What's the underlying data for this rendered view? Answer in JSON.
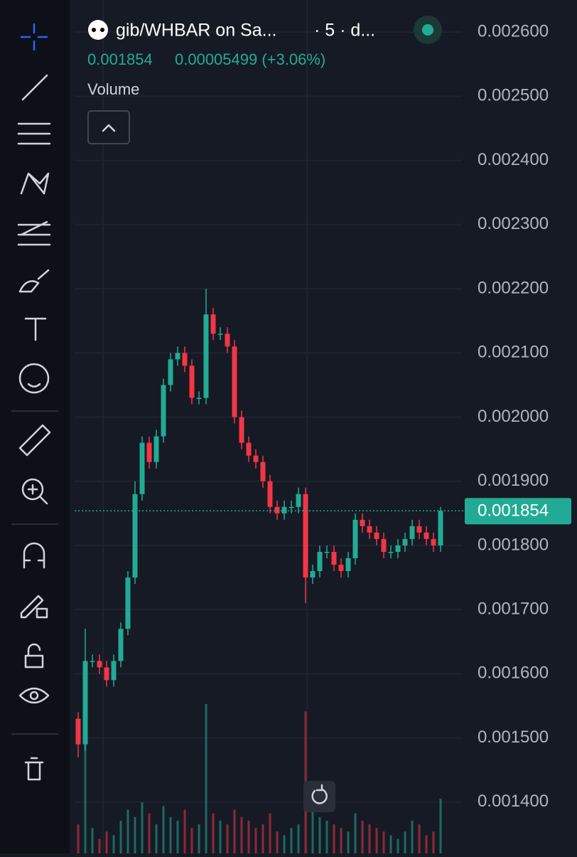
{
  "header": {
    "title": "gib/WHBAR on Sa...",
    "interval": "· 5 · d...",
    "last_price": "0.001854",
    "change": "0.00005499 (+3.06%)",
    "volume_label": "Volume"
  },
  "chart_data": {
    "type": "candlestick",
    "open": [
      0.00153,
      0.00149,
      0.00162,
      0.00162,
      0.00161,
      0.00159,
      0.00162,
      0.00167,
      0.00175,
      0.00188,
      0.00196,
      0.00193,
      0.00197,
      0.00205,
      0.00209,
      0.0021,
      0.00208,
      0.00203,
      0.00203,
      0.00216,
      0.00213,
      0.00213,
      0.00211,
      0.002,
      0.00196,
      0.00194,
      0.00193,
      0.0019,
      0.00186,
      0.00185,
      0.00186,
      0.00186,
      0.00188,
      0.00175,
      0.00176,
      0.00179,
      0.00179,
      0.00177,
      0.00176,
      0.00178,
      0.00184,
      0.00183,
      0.00182,
      0.00181,
      0.00179,
      0.00179,
      0.0018,
      0.00181,
      0.00183,
      0.00182,
      0.00181,
      0.0018
    ],
    "high": [
      0.00154,
      0.00167,
      0.00163,
      0.00163,
      0.00162,
      0.00163,
      0.00168,
      0.00176,
      0.0019,
      0.00197,
      0.00197,
      0.00198,
      0.00206,
      0.0021,
      0.00211,
      0.00211,
      0.00209,
      0.00204,
      0.0022,
      0.00217,
      0.00214,
      0.00214,
      0.00212,
      0.00201,
      0.00197,
      0.00195,
      0.00194,
      0.00191,
      0.00187,
      0.00187,
      0.00187,
      0.00189,
      0.00189,
      0.00177,
      0.0018,
      0.0018,
      0.0018,
      0.00178,
      0.00179,
      0.00185,
      0.00185,
      0.00184,
      0.00183,
      0.00182,
      0.0018,
      0.00181,
      0.00182,
      0.00184,
      0.00184,
      0.00183,
      0.00182,
      0.00186
    ],
    "low": [
      0.00147,
      0.00148,
      0.00161,
      0.0016,
      0.00158,
      0.00158,
      0.00161,
      0.00166,
      0.00174,
      0.00187,
      0.00192,
      0.00192,
      0.00196,
      0.00204,
      0.00208,
      0.00207,
      0.00202,
      0.00202,
      0.00202,
      0.00212,
      0.00212,
      0.0021,
      0.00199,
      0.00195,
      0.00193,
      0.00192,
      0.00189,
      0.00185,
      0.00184,
      0.00184,
      0.00185,
      0.00185,
      0.00171,
      0.00174,
      0.00175,
      0.00178,
      0.00176,
      0.00175,
      0.00175,
      0.00177,
      0.00182,
      0.00181,
      0.0018,
      0.00178,
      0.00178,
      0.00178,
      0.00179,
      0.0018,
      0.00181,
      0.0018,
      0.00179,
      0.00179
    ],
    "close": [
      0.00149,
      0.00162,
      0.00162,
      0.00161,
      0.00159,
      0.00162,
      0.00167,
      0.00175,
      0.00188,
      0.00196,
      0.00193,
      0.00197,
      0.00205,
      0.00209,
      0.0021,
      0.00208,
      0.00203,
      0.00203,
      0.00216,
      0.00213,
      0.00213,
      0.00211,
      0.002,
      0.00196,
      0.00194,
      0.00193,
      0.0019,
      0.00186,
      0.00185,
      0.00186,
      0.00186,
      0.00188,
      0.00175,
      0.00176,
      0.00179,
      0.00179,
      0.00177,
      0.00176,
      0.00178,
      0.00184,
      0.00183,
      0.00182,
      0.00181,
      0.00179,
      0.00179,
      0.0018,
      0.00181,
      0.00183,
      0.00182,
      0.00181,
      0.0018,
      0.001854
    ],
    "volume": [
      40,
      150,
      35,
      20,
      30,
      25,
      45,
      60,
      50,
      70,
      55,
      40,
      65,
      50,
      45,
      60,
      35,
      40,
      205,
      55,
      45,
      40,
      60,
      50,
      45,
      35,
      40,
      55,
      30,
      25,
      35,
      40,
      195,
      60,
      50,
      45,
      40,
      35,
      30,
      55,
      45,
      40,
      35,
      30,
      25,
      20,
      30,
      45,
      40,
      25,
      30,
      75
    ],
    "up_color": "#22ab94",
    "down_color": "#f23645",
    "ylim": [
      0.00132,
      0.00265
    ],
    "yticks": [
      {
        "value": 0.0026,
        "label": "0.002600"
      },
      {
        "value": 0.0025,
        "label": "0.002500"
      },
      {
        "value": 0.0024,
        "label": "0.002400"
      },
      {
        "value": 0.0023,
        "label": "0.002300"
      },
      {
        "value": 0.0022,
        "label": "0.002200"
      },
      {
        "value": 0.0021,
        "label": "0.002100"
      },
      {
        "value": 0.002,
        "label": "0.002000"
      },
      {
        "value": 0.0019,
        "label": "0.001900"
      },
      {
        "value": 0.0018,
        "label": "0.001800"
      },
      {
        "value": 0.0017,
        "label": "0.001700"
      },
      {
        "value": 0.0016,
        "label": "0.001600"
      },
      {
        "value": 0.0015,
        "label": "0.001500"
      },
      {
        "value": 0.0014,
        "label": "0.001400"
      }
    ],
    "current_price": {
      "value": 0.001854,
      "label": "0.001854"
    },
    "grid": true
  }
}
